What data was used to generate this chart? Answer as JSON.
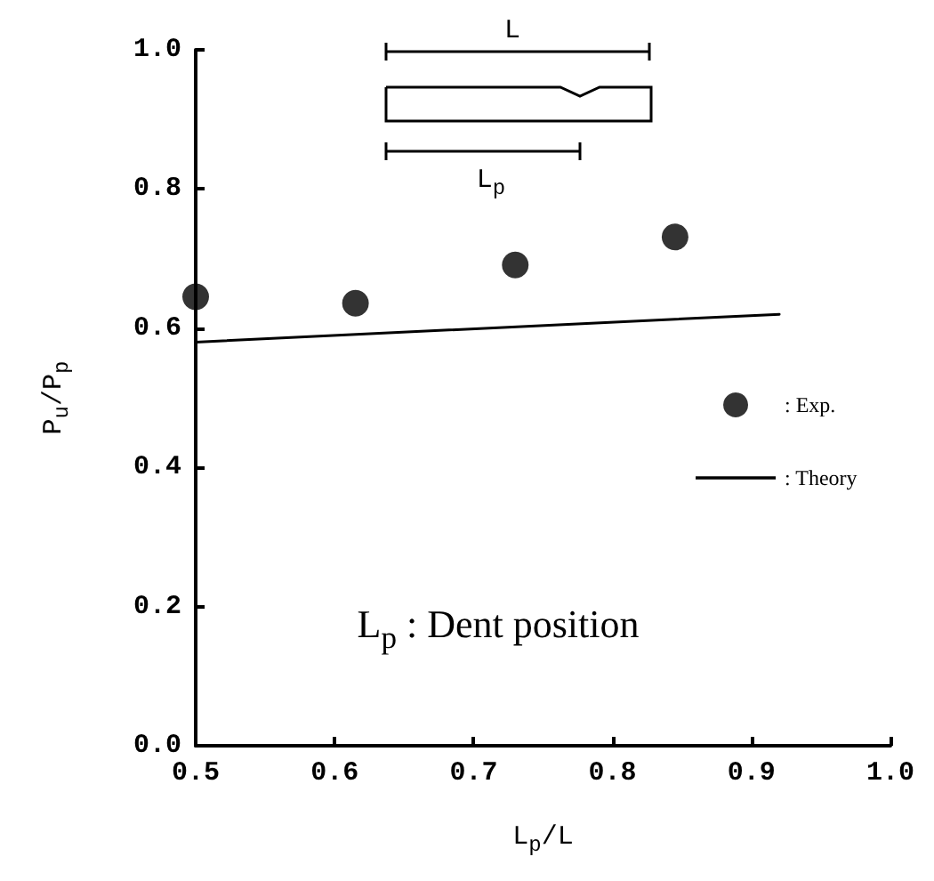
{
  "chart_data": {
    "type": "scatter",
    "xlabel": "L$_{p}$/L",
    "ylabel": "P$_{u}$/P$_{p}$",
    "series": [
      {
        "name": ": Exp.",
        "color": "#000000",
        "marker": "circle",
        "x": [
          0.5,
          0.615,
          0.73,
          0.845
        ],
        "values": [
          0.645,
          0.636,
          0.691,
          0.731
        ]
      },
      {
        "name": ": Theory",
        "type": "line",
        "color": "#000000",
        "marker": "none",
        "line_style": "solid",
        "x": [
          0.5,
          0.92
        ],
        "values": [
          0.58,
          0.62
        ]
      }
    ],
    "xlim": [
      0.5,
      1.0
    ],
    "xticks": [
      0.5,
      0.6,
      0.7,
      0.8,
      0.9,
      {
        "value": 1,
        "label": "1.0"
      }
    ],
    "ylim": [
      0.0,
      1.0
    ],
    "yticks": [
      {
        "value": 0,
        "label": "0.0"
      },
      0.2,
      0.4,
      0.6,
      0.8,
      {
        "value": 1,
        "label": "1.0"
      }
    ],
    "grid": false,
    "legend": "right",
    "annotations": [
      "L",
      "L$_{p}$",
      "L$_{p}$ : Dent position"
    ]
  }
}
